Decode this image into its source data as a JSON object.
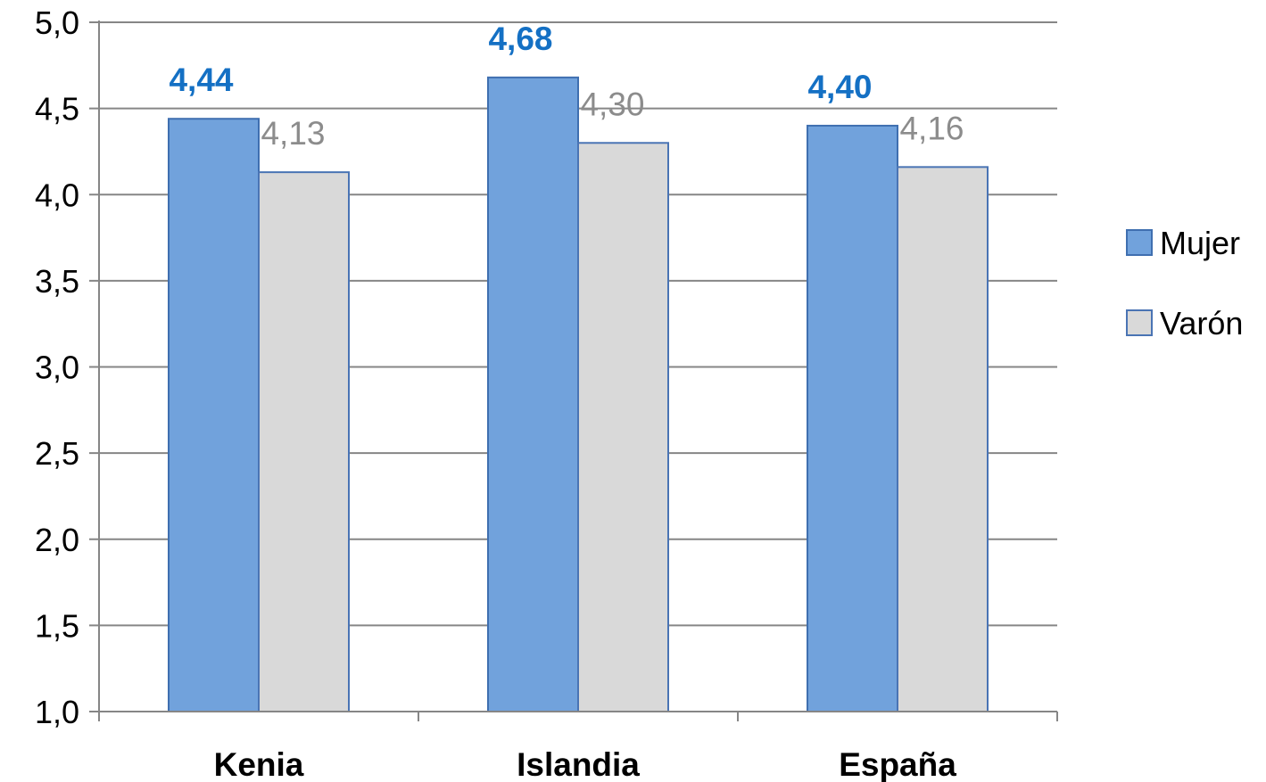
{
  "chart_data": {
    "type": "bar",
    "categories": [
      "Kenia",
      "Islandia",
      "España"
    ],
    "series": [
      {
        "name": "Mujer",
        "values": [
          4.44,
          4.68,
          4.4
        ],
        "labels": [
          "4,44",
          "4,68",
          "4,40"
        ],
        "color": "#71a2dc",
        "stroke": "#3f6fb0",
        "label_color": "#1470c4"
      },
      {
        "name": "Varón",
        "values": [
          4.13,
          4.3,
          4.16
        ],
        "labels": [
          "4,13",
          "4,30",
          "4,16"
        ],
        "color": "#d9d9d9",
        "stroke": "#4a74b4",
        "label_color": "#8c8c8c"
      }
    ],
    "yticks": [
      1.0,
      1.5,
      2.0,
      2.5,
      3.0,
      3.5,
      4.0,
      4.5,
      5.0
    ],
    "ytick_labels": [
      "1,0",
      "1,5",
      "2,0",
      "2,5",
      "3,0",
      "3,5",
      "4,0",
      "4,5",
      "5,0"
    ],
    "ylim": [
      1.0,
      5.0
    ],
    "grid": true,
    "legend_position": "right",
    "title": "",
    "xlabel": "",
    "ylabel": ""
  }
}
